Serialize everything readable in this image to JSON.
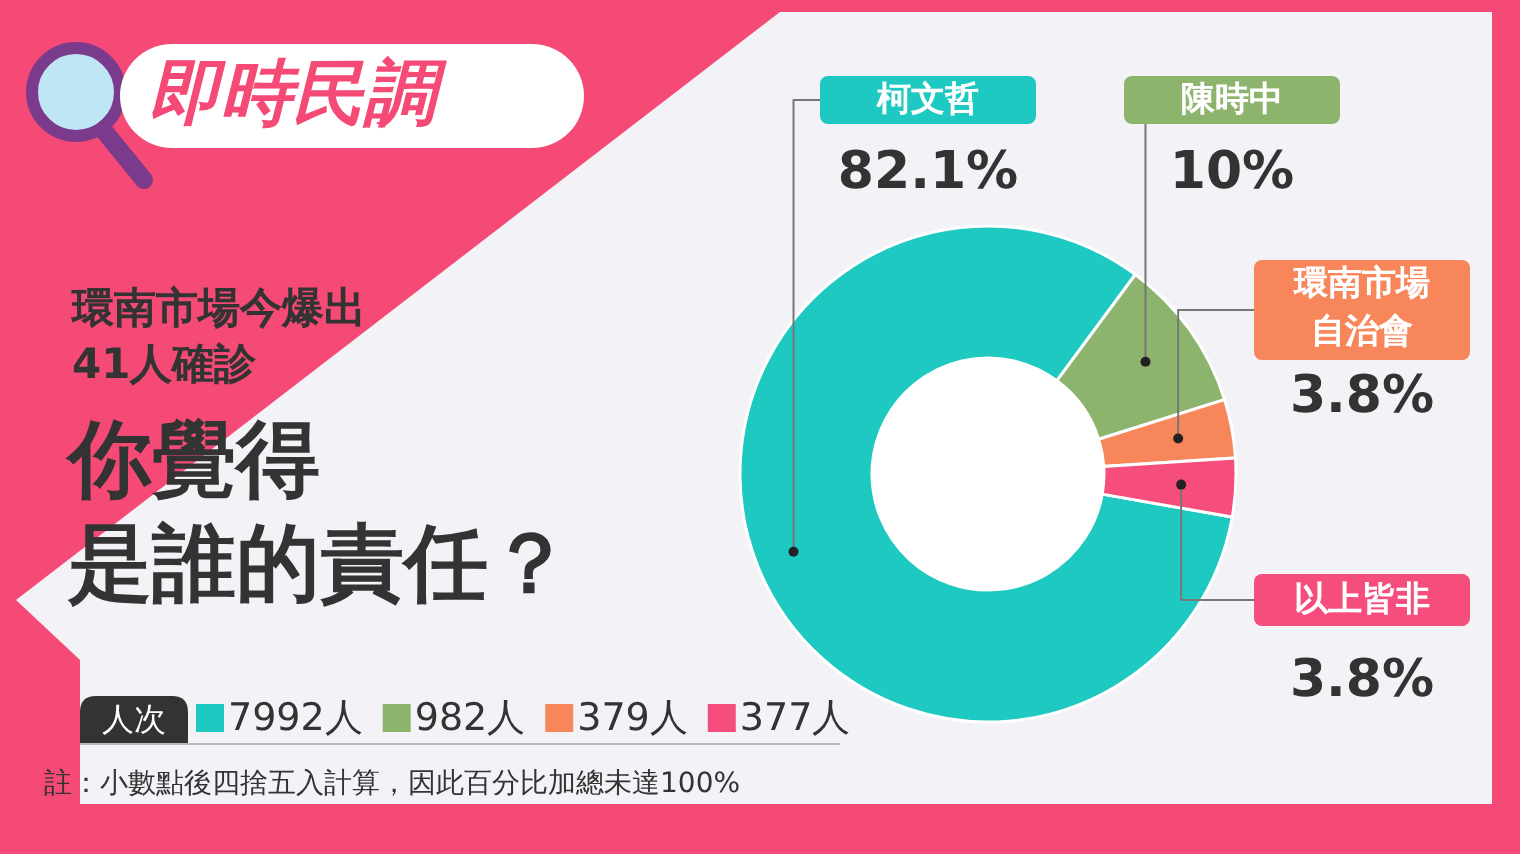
{
  "chart_data": {
    "type": "donut",
    "title": "即時民調",
    "subtitle": "環南市場今爆出41人確診",
    "categories": [
      "柯文哲",
      "陳時中",
      "環南市場自治會",
      "以上皆非"
    ],
    "values": [
      82.1,
      10,
      3.8,
      3.8
    ],
    "value_labels": [
      "82.1%",
      "10%",
      "3.8%",
      "3.8%"
    ],
    "colors": [
      "#1ec9c2",
      "#8cb46c",
      "#f7875a",
      "#f54d7c"
    ],
    "legend_title": "人次",
    "annotations": [
      "7992人",
      "982人",
      "379人",
      "377人",
      "註：小數點後四捨五入計算，因此百分比加總未達100%",
      "你覺得",
      "是誰的責任？"
    ]
  }
}
